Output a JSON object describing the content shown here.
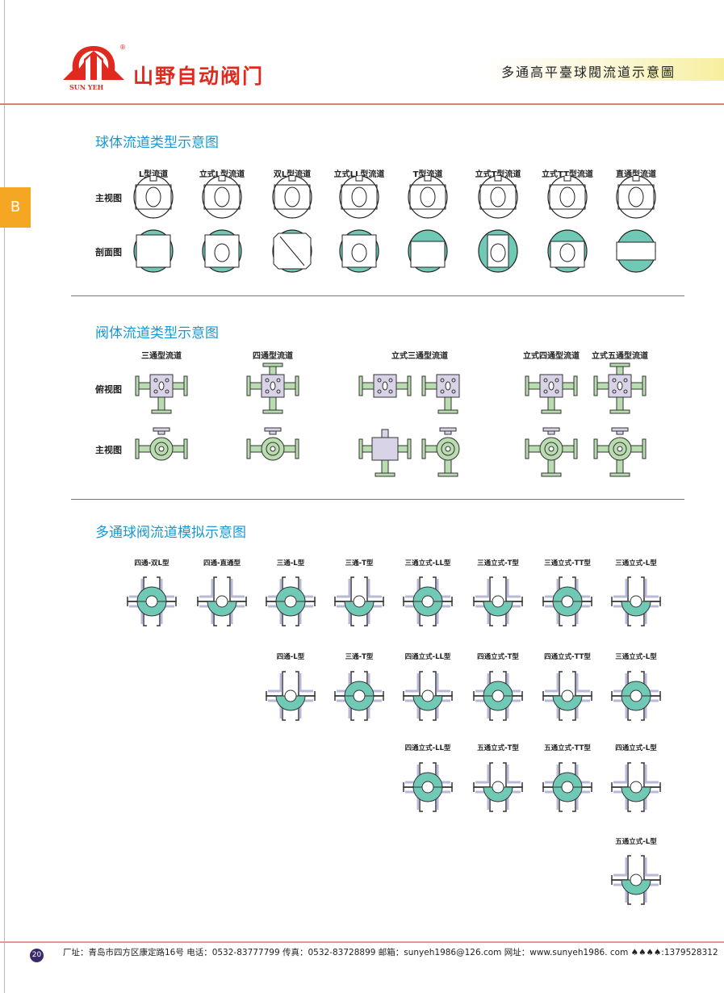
{
  "header": {
    "brand_cn": "山野自动阀门",
    "brand_en": "SUN YEH",
    "registered": "®",
    "page_title": "多通高平臺球閥流道示意圖",
    "section_tab": "B"
  },
  "colors": {
    "brand_red": "#e02a20",
    "section_blue": "#1898d2",
    "tab_orange": "#f5a623",
    "teal": "#6fc9b5",
    "green": "#b9dcb0",
    "lavender": "#d9d3e8",
    "port_gray": "#b8b9d8"
  },
  "section1": {
    "title": "球体流道类型示意图",
    "row_labels": [
      "主视图",
      "剖面图"
    ],
    "columns": [
      "L型流道",
      "立式L型流道",
      "双L型流道",
      "立式LL型流道",
      "T型流道",
      "立式T型流道",
      "立式TT型流道",
      "直通型流道"
    ]
  },
  "section2": {
    "title": "阀体流道类型示意图",
    "row_labels": [
      "俯视图",
      "主视图"
    ],
    "columns": [
      "三通型流道",
      "四通型流道",
      "立式三通型流道",
      "立式四通型流道",
      "立式五通型流道"
    ]
  },
  "section3": {
    "title": "多通球阀流道模拟示意图",
    "rows": [
      [
        "四通-双L型",
        "四通-直通型",
        "三通-L型",
        "三通-T型",
        "三通立式-LL型",
        "三通立式-T型",
        "三通立式-TT型",
        "三通立式-L型"
      ],
      [
        "四通-L型",
        "三通-T型",
        "四通立式-LL型",
        "四通立式-T型",
        "四通立式-TT型",
        "三通立式-L型"
      ],
      [
        "四通立式-LL型",
        "五通立式-T型",
        "五通立式-TT型",
        "四通立式-L型"
      ],
      [
        "五通立式-L型"
      ]
    ]
  },
  "footer": {
    "page_number": "20",
    "text": "厂址：青岛市四方区康定路16号  电话：0532-83777799  传真：0532-83728899  邮箱：sunyeh1986@126.com  网址：www.sunyeh1986. com  ♠♠♠♠:1379528312"
  }
}
